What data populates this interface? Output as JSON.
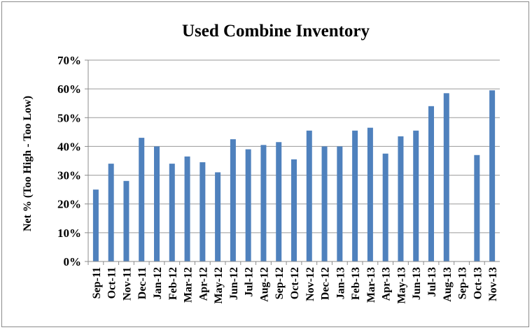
{
  "chart_data": {
    "type": "bar",
    "title": "Used Combine Inventory",
    "xlabel": "",
    "ylabel": "Net %  (Too High -   Too Low)",
    "ylim": [
      0,
      70
    ],
    "yticks": [
      0,
      10,
      20,
      30,
      40,
      50,
      60,
      70
    ],
    "ytick_labels": [
      "0%",
      "10%",
      "20%",
      "30%",
      "40%",
      "50%",
      "60%",
      "70%"
    ],
    "grid": true,
    "legend": "none",
    "bar_color": "#4f81bd",
    "categories": [
      "Sep-11",
      "Oct-11",
      "Nov-11",
      "Dec-11",
      "Jan-12",
      "Feb-12",
      "Mar-12",
      "Apr-12",
      "May-12",
      "Jun-12",
      "Jul-12",
      "Aug-12",
      "Sep-12",
      "Oct-12",
      "Nov-12",
      "Dec-12",
      "Jan-13",
      "Feb-13",
      "Mar-13",
      "Apr-13",
      "May-13",
      "Jun-13",
      "Jul-13",
      "Aug-13",
      "Sep-13",
      "Oct-13",
      "Nov-13"
    ],
    "values": [
      25,
      34,
      28,
      43,
      40,
      34,
      36.5,
      34.5,
      31,
      42.5,
      39,
      40.5,
      41.5,
      35.5,
      45.5,
      40,
      40,
      45.5,
      46.5,
      37.5,
      43.5,
      45.5,
      54,
      58.5,
      null,
      37,
      59.5
    ]
  }
}
